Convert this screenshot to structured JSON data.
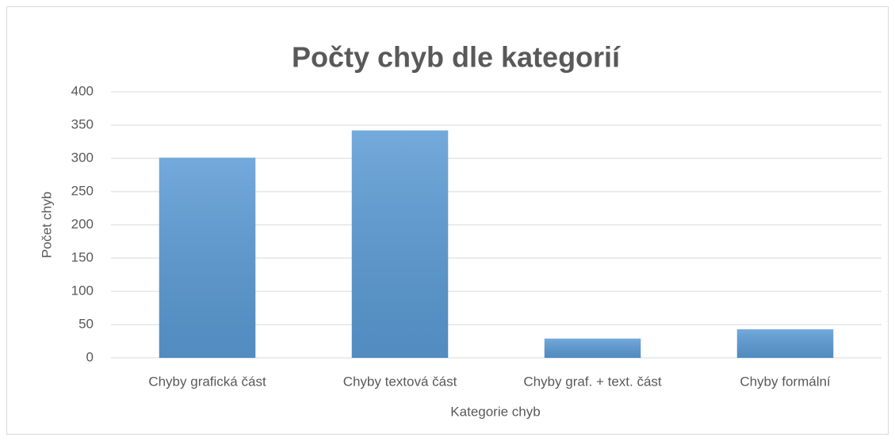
{
  "chart_data": {
    "type": "bar",
    "title": "Počty chyb dle kategorií",
    "x_label": "Kategorie chyb",
    "y_label": "Počet chyb",
    "categories": [
      "Chyby grafická část",
      "Chyby textová část",
      "Chyby graf. + text. část",
      "Chyby formální"
    ],
    "values": [
      301,
      342,
      29,
      43
    ],
    "color": "#5b9bd5",
    "ylim": [
      0,
      400
    ],
    "yticks": [
      0,
      50,
      100,
      150,
      200,
      250,
      300,
      350,
      400
    ],
    "grid": true
  }
}
